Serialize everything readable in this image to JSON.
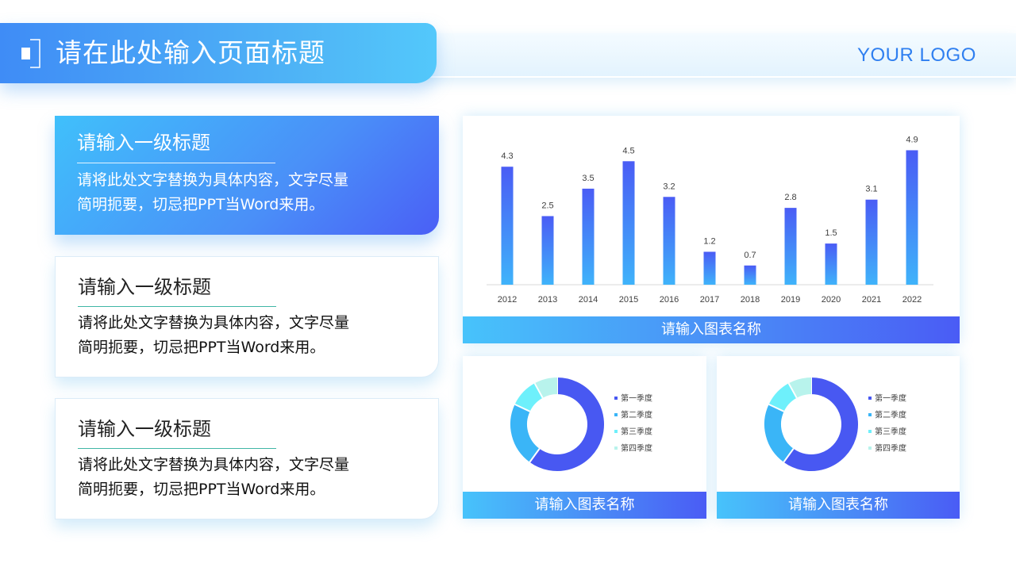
{
  "header": {
    "title": "请在此处输入页面标题",
    "logo": "YOUR LOGO",
    "icon": "title-bracket-icon"
  },
  "cards": [
    {
      "title": "请输入一级标题",
      "body_line1": "请将此处文字替换为具体内容，文字尽量",
      "body_line2": "简明扼要，切忌把PPT当Word来用。"
    },
    {
      "title": "请输入一级标题",
      "body_line1": "请将此处文字替换为具体内容，文字尽量",
      "body_line2": "简明扼要，切忌把PPT当Word来用。"
    },
    {
      "title": "请输入一级标题",
      "body_line1": "请将此处文字替换为具体内容，文字尽量",
      "body_line2": "简明扼要，切忌把PPT当Word来用。"
    }
  ],
  "colors": {
    "accent_blue": "#4a8ff8",
    "accent_indigo": "#4a5ff6",
    "accent_cyan": "#40c0fb",
    "logo_blue": "#2f7ff0",
    "donut_q1": "#4858f2",
    "donut_q2": "#3ab5f7",
    "donut_q3": "#6ef0fb",
    "donut_q4": "#b8f3ec"
  },
  "chart_data": [
    {
      "type": "bar",
      "caption": "请输入图表名称",
      "categories": [
        "2012",
        "2013",
        "2014",
        "2015",
        "2016",
        "2017",
        "2018",
        "2019",
        "2020",
        "2021",
        "2022"
      ],
      "values": [
        4.3,
        2.5,
        3.5,
        4.5,
        3.2,
        1.2,
        0.7,
        2.8,
        1.5,
        3.1,
        4.9
      ],
      "data_labels": [
        "4.3",
        "2.5",
        "3.5",
        "4.5",
        "3.2",
        "1.2",
        "0.7",
        "2.8",
        "1.5",
        "3.1",
        "4.9"
      ],
      "ylim": [
        0,
        5.0
      ],
      "grid": false
    },
    {
      "type": "pie",
      "style": "donut",
      "caption": "请输入图表名称",
      "labels": [
        "第一季度",
        "第二季度",
        "第三季度",
        "第四季度"
      ],
      "values": [
        60,
        22,
        10,
        8
      ],
      "legend": "right"
    },
    {
      "type": "pie",
      "style": "donut",
      "caption": "请输入图表名称",
      "labels": [
        "第一季度",
        "第二季度",
        "第三季度",
        "第四季度"
      ],
      "values": [
        60,
        22,
        10,
        8
      ],
      "legend": "right"
    }
  ]
}
